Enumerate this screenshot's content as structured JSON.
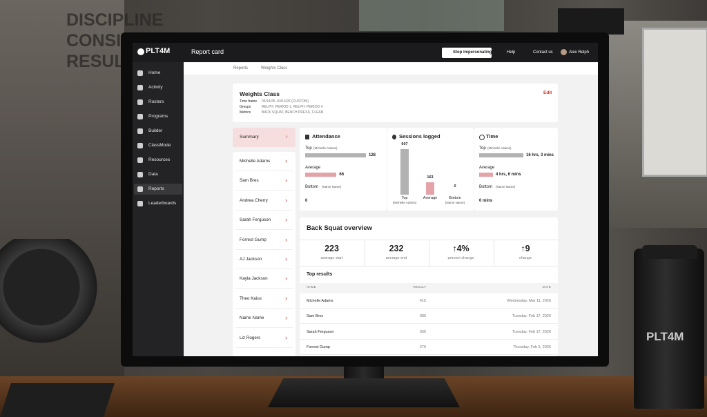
{
  "scene": {
    "wall": [
      "DISCIPLINE",
      "CONSISTE",
      "RESULTS"
    ],
    "bottle": "PLT4M"
  },
  "topbar": {
    "logo": "PLT4M",
    "title": "Report card",
    "stop": "Stop impersonating",
    "help": "Help",
    "contact": "Contact us",
    "user": "Alex Relph"
  },
  "sidebar": [
    "Home",
    "Activity",
    "Rosters",
    "Programs",
    "Builder",
    "ClassMode",
    "Resources",
    "Data",
    "Reports",
    "Leaderboards"
  ],
  "breadcrumb": [
    "Reports",
    "Weights Class"
  ],
  "header": {
    "title": "Weights Class",
    "edit": "Edit",
    "fields": [
      [
        "Time frame",
        "03/14/25–03/14/26 (CUSTOM)"
      ],
      [
        "Groups",
        "RELPH: PERIOD 1, RELPH: PERIOD 4"
      ],
      [
        "Metrics",
        "BACK SQUAT, BENCH PRESS, CLEAN"
      ]
    ]
  },
  "summary": "Summary",
  "students": [
    "Michelle Adams",
    "Sam Bres",
    "Andrea Cherry",
    "Sarah Ferguson",
    "Forrest Gump",
    "AJ Jackson",
    "Kayla Jackson",
    "Theo Kaius",
    "Name Name",
    "Liz Rogers"
  ],
  "attendance": {
    "title": "Attendance",
    "rows": [
      {
        "label": "Top",
        "who": "(Michelle Adams)",
        "value": 128
      },
      {
        "label": "Average",
        "value": 66
      },
      {
        "label": "Bottom",
        "who": "(Name Name)",
        "value": 0
      }
    ]
  },
  "sessions": {
    "title": "Sessions logged",
    "bars": [
      {
        "label": "Top",
        "who": "(Michelle Adams)",
        "value": 607
      },
      {
        "label": "Average",
        "value": 163
      },
      {
        "label": "Bottom",
        "who": "(Name Name)",
        "value": 0
      }
    ]
  },
  "time": {
    "title": "Time",
    "rows": [
      {
        "label": "Top",
        "who": "(Michelle Adams)",
        "value": "16 hrs, 3 mins"
      },
      {
        "label": "Average",
        "value": "4 hrs, 6 mins"
      },
      {
        "label": "Bottom",
        "who": "(Name Name)",
        "value": "0 mins"
      }
    ]
  },
  "overview": {
    "title": "Back Squat overview",
    "stats": [
      {
        "value": "223",
        "label": "average start"
      },
      {
        "value": "232",
        "label": "average end"
      },
      {
        "value": "↑4%",
        "label": "percent change"
      },
      {
        "value": "↑9",
        "label": "change"
      }
    ],
    "results_title": "Top results",
    "columns": [
      "NAME",
      "RESULT",
      "DATE"
    ],
    "rows": [
      [
        "Michelle Adams",
        "415",
        "Wednesday, Mar 11, 2026"
      ],
      [
        "Sam Bres",
        "380",
        "Tuesday, Feb 17, 2026"
      ],
      [
        "Sarah Ferguson",
        "360",
        "Tuesday, Feb 17, 2026"
      ],
      [
        "Forrest Gump",
        "270",
        "Thursday, Feb 5, 2026"
      ]
    ]
  }
}
